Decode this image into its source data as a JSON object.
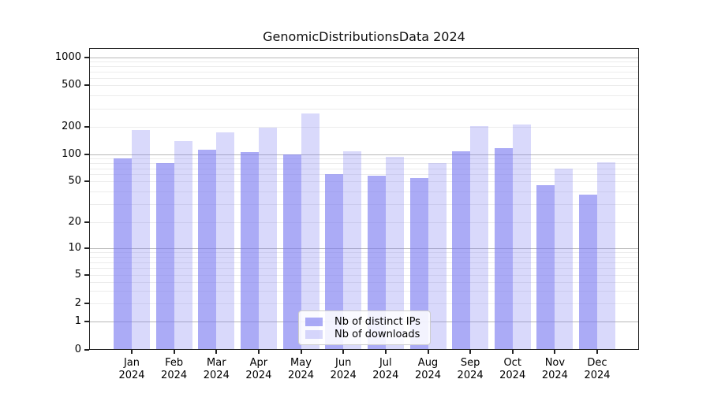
{
  "chart_data": {
    "type": "bar",
    "title": "GenomicDistributionsData 2024",
    "categories": [
      "Jan 2024",
      "Feb 2024",
      "Mar 2024",
      "Apr 2024",
      "May 2024",
      "Jun 2024",
      "Jul 2024",
      "Aug 2024",
      "Sep 2024",
      "Oct 2024",
      "Nov 2024",
      "Dec 2024"
    ],
    "series": [
      {
        "name": "Nb of distinct IPs",
        "color": "rgba(120,120,240,0.62)",
        "values": [
          90,
          80,
          113,
          106,
          100,
          60,
          58,
          54,
          108,
          117,
          46,
          37
        ]
      },
      {
        "name": "Nb of downloads",
        "color": "rgba(120,120,240,0.28)",
        "values": [
          185,
          140,
          173,
          195,
          268,
          108,
          94,
          80,
          202,
          212,
          70,
          82
        ]
      }
    ],
    "yticks": [
      0,
      1,
      2,
      5,
      10,
      20,
      50,
      100,
      200,
      500,
      1000
    ],
    "xlabel": "",
    "ylabel": "",
    "yscale": "symlog",
    "ylim": [
      0,
      1230
    ],
    "grid": true,
    "legend_position": "lower center",
    "colors": {
      "bar_base": "#7878f0",
      "major_grid": "#b9b9b9",
      "minor_grid": "#ececec",
      "spine": "#222222",
      "background": "#ffffff"
    }
  }
}
